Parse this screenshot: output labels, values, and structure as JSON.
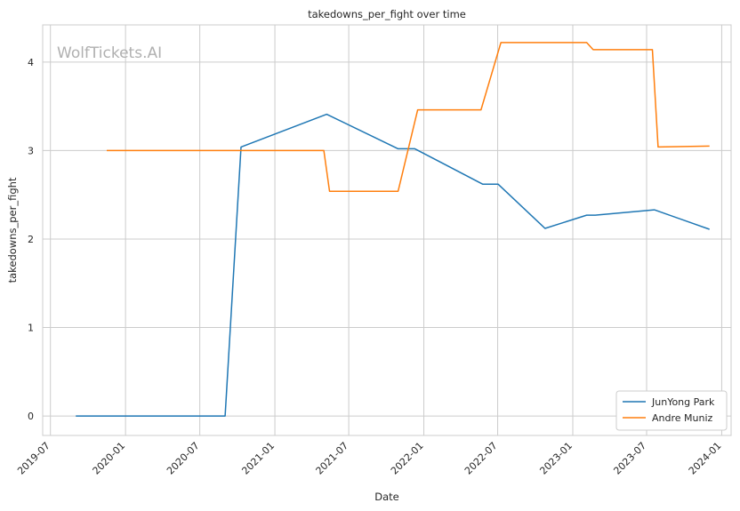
{
  "chart_data": {
    "type": "line",
    "title": "takedowns_per_fight over time",
    "xlabel": "Date",
    "ylabel": "takedowns_per_fight",
    "watermark": "WolfTickets.AI",
    "xlim": [
      "2019-06-12",
      "2024-01-24"
    ],
    "ylim": [
      -0.22,
      4.42
    ],
    "x_ticks": [
      "2019-07",
      "2020-01",
      "2020-07",
      "2021-01",
      "2021-07",
      "2022-01",
      "2022-07",
      "2023-01",
      "2023-07",
      "2024-01"
    ],
    "y_ticks": [
      0,
      1,
      2,
      3,
      4
    ],
    "grid": true,
    "legend_position": "bottom-right",
    "series": [
      {
        "name": "JunYong Park",
        "color": "#1f77b4",
        "points": [
          [
            "2019-09-01",
            0.0
          ],
          [
            "2020-09-01",
            0.0
          ],
          [
            "2020-10-10",
            3.04
          ],
          [
            "2021-05-08",
            3.41
          ],
          [
            "2021-10-30",
            3.02
          ],
          [
            "2021-12-10",
            3.02
          ],
          [
            "2022-05-25",
            2.62
          ],
          [
            "2022-07-02",
            2.62
          ],
          [
            "2022-10-25",
            2.12
          ],
          [
            "2023-02-04",
            2.27
          ],
          [
            "2023-02-25",
            2.27
          ],
          [
            "2023-07-20",
            2.33
          ],
          [
            "2023-12-02",
            2.11
          ]
        ]
      },
      {
        "name": "Andre Muniz",
        "color": "#ff7f0e",
        "points": [
          [
            "2019-11-16",
            3.0
          ],
          [
            "2021-05-01",
            3.0
          ],
          [
            "2021-05-15",
            2.54
          ],
          [
            "2021-10-30",
            2.54
          ],
          [
            "2021-12-17",
            3.46
          ],
          [
            "2022-05-21",
            3.46
          ],
          [
            "2022-07-09",
            4.22
          ],
          [
            "2023-02-04",
            4.22
          ],
          [
            "2023-02-20",
            4.14
          ],
          [
            "2023-07-15",
            4.14
          ],
          [
            "2023-07-29",
            3.04
          ],
          [
            "2023-12-02",
            3.05
          ]
        ]
      }
    ]
  }
}
